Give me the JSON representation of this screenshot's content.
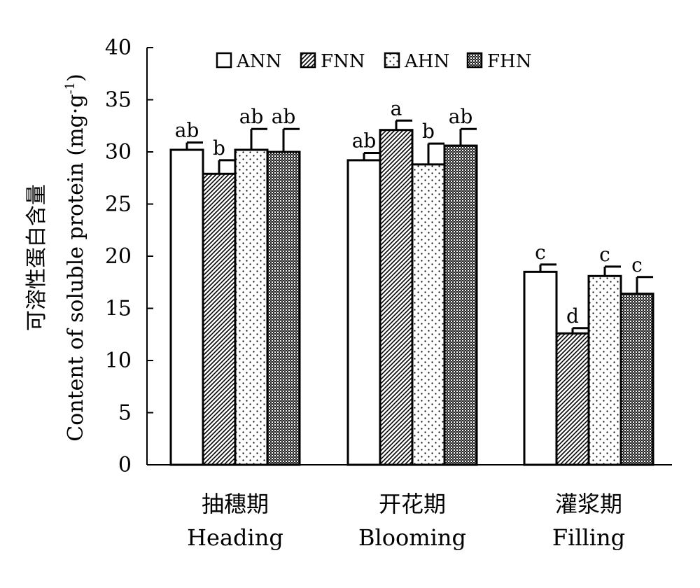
{
  "chart_data": {
    "type": "bar",
    "title": "",
    "ylabel_cn": "可溶性蛋白含量",
    "ylabel_en": "Content of soluble protein (mg·g",
    "ylabel_sup": "-1",
    "ylabel_close": ")",
    "ylim": [
      0,
      40
    ],
    "yticks": [
      0,
      5,
      10,
      15,
      20,
      25,
      30,
      35,
      40
    ],
    "grid": false,
    "legend_position": "top",
    "categories": [
      {
        "cn": "抽穗期",
        "en": "Heading"
      },
      {
        "cn": "开花期",
        "en": "Blooming"
      },
      {
        "cn": "灌浆期",
        "en": "Filling"
      }
    ],
    "series": [
      {
        "name": "ANN",
        "pattern": "white",
        "values": [
          30.2,
          29.2,
          18.5
        ],
        "errors": [
          0.7,
          0.7,
          0.7
        ],
        "labels": [
          "ab",
          "ab",
          "c"
        ]
      },
      {
        "name": "FNN",
        "pattern": "diagonal",
        "values": [
          27.9,
          32.1,
          12.6
        ],
        "errors": [
          1.3,
          0.9,
          0.5
        ],
        "labels": [
          "b",
          "a",
          "d"
        ]
      },
      {
        "name": "AHN",
        "pattern": "dots",
        "values": [
          30.2,
          28.8,
          18.1
        ],
        "errors": [
          2.0,
          2.0,
          0.9
        ],
        "labels": [
          "ab",
          "b",
          "c"
        ]
      },
      {
        "name": "FHN",
        "pattern": "checker",
        "values": [
          30.0,
          30.6,
          16.4
        ],
        "errors": [
          2.2,
          1.6,
          1.6
        ],
        "labels": [
          "ab",
          "ab",
          "c"
        ]
      }
    ]
  }
}
